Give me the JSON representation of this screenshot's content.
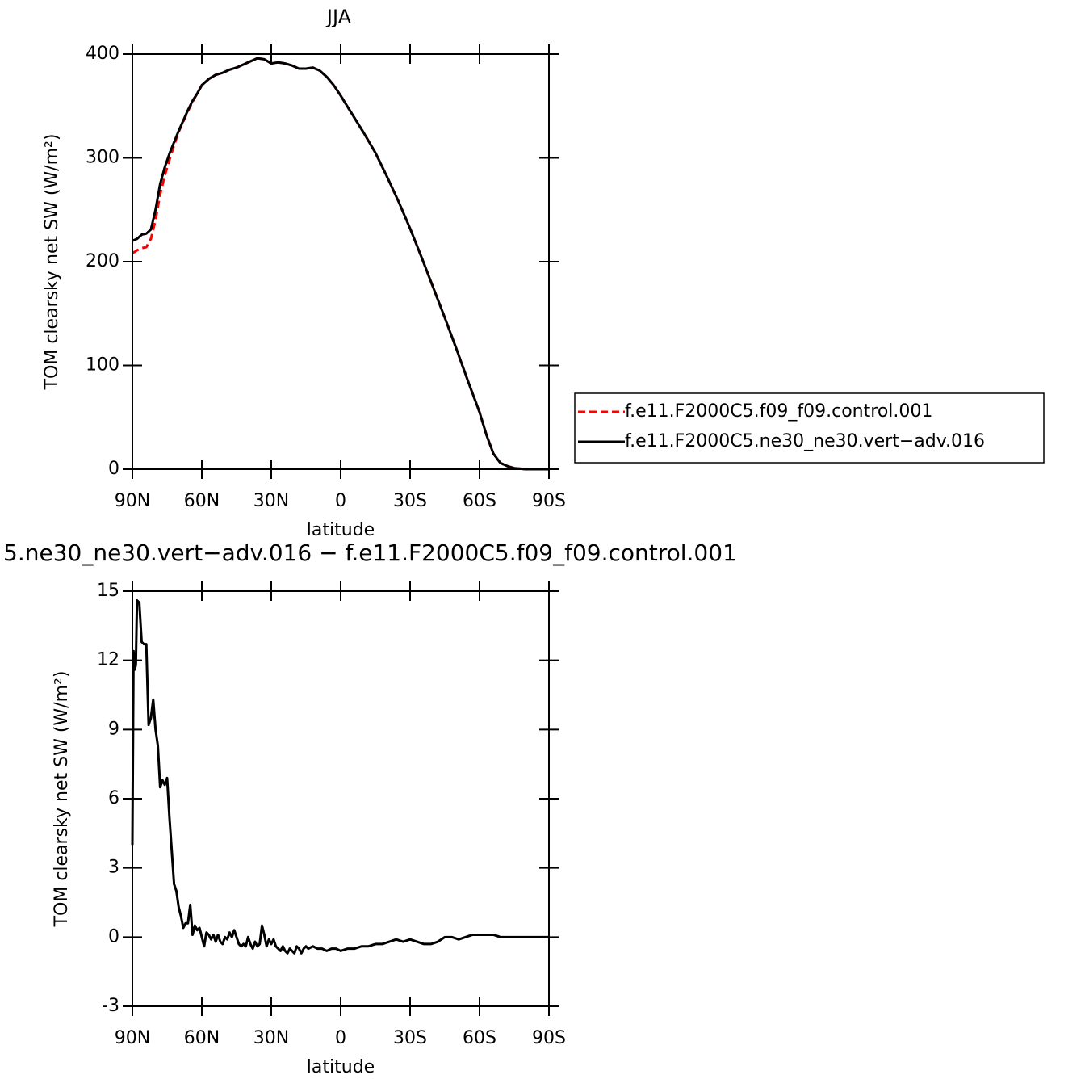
{
  "chart_data": [
    {
      "type": "line",
      "title": "JJA",
      "x_label": "latitude",
      "y_label": "TOM clearsky net SW (W/m²)",
      "xlim": [
        90,
        -90
      ],
      "xticks": [
        {
          "value": 90,
          "label": "90N"
        },
        {
          "value": 60,
          "label": "60N"
        },
        {
          "value": 30,
          "label": "30N"
        },
        0,
        {
          "value": -30,
          "label": "30S"
        },
        {
          "value": -60,
          "label": "60S"
        },
        {
          "value": -90,
          "label": "90S"
        }
      ],
      "ylim": [
        0,
        400
      ],
      "yticks": [
        0,
        100,
        200,
        300,
        400
      ],
      "legend": "right",
      "x": [
        90,
        88,
        86,
        84,
        82,
        80,
        78,
        76,
        74,
        72,
        70,
        68,
        66,
        64,
        62,
        60,
        57,
        54,
        51,
        48,
        45,
        42,
        39,
        36,
        33,
        30,
        27,
        24,
        21,
        18,
        15,
        12,
        9,
        6,
        3,
        0,
        -5,
        -10,
        -15,
        -20,
        -25,
        -30,
        -35,
        -40,
        -45,
        -50,
        -55,
        -60,
        -63,
        -66,
        -69,
        -72,
        -75,
        -80,
        -85,
        -90
      ],
      "series": [
        {
          "name": "f.e11.F2000C5.f09_f09.control.001",
          "color": "#ff0000",
          "style": "dashed",
          "values": [
            208,
            211,
            213,
            214,
            222,
            240,
            265,
            283,
            298,
            312,
            325,
            335,
            345,
            354,
            362,
            370,
            376,
            380,
            382,
            385,
            387,
            390,
            393,
            396,
            395,
            391,
            392,
            391,
            389,
            386,
            386,
            387,
            384,
            378,
            370,
            360,
            342,
            324,
            305,
            282,
            258,
            232,
            204,
            175,
            146,
            116,
            85,
            55,
            33,
            15,
            6,
            3,
            1,
            0,
            0,
            0
          ]
        },
        {
          "name": "f.e11.F2000C5.ne30_ne30.vert−adv.016",
          "color": "#000000",
          "style": "solid",
          "values": [
            220,
            222,
            226,
            227,
            231,
            250,
            275,
            291,
            304,
            315,
            326,
            336,
            346,
            355,
            362,
            370,
            376,
            380,
            382,
            385,
            387,
            390,
            393,
            396,
            395,
            391,
            392,
            391,
            389,
            386,
            386,
            387,
            384,
            378,
            370,
            360,
            342,
            324,
            305,
            282,
            258,
            232,
            204,
            175,
            146,
            116,
            85,
            55,
            33,
            15,
            6,
            3,
            1,
            0,
            0,
            0
          ]
        }
      ]
    },
    {
      "type": "line",
      "title": "5.ne30_ne30.vert−adv.016 − f.e11.F2000C5.f09_f09.control.001",
      "x_label": "latitude",
      "y_label": "TOM clearsky net SW (W/m²)",
      "xlim": [
        90,
        -90
      ],
      "xticks": [
        {
          "value": 90,
          "label": "90N"
        },
        {
          "value": 60,
          "label": "60N"
        },
        {
          "value": 30,
          "label": "30N"
        },
        0,
        {
          "value": -30,
          "label": "30S"
        },
        {
          "value": -60,
          "label": "60S"
        },
        {
          "value": -90,
          "label": "90S"
        }
      ],
      "ylim": [
        -3,
        15
      ],
      "yticks": [
        -3,
        0,
        3,
        6,
        9,
        12,
        15
      ],
      "x": [
        90,
        89.5,
        89,
        88.5,
        88,
        87,
        86,
        85,
        84,
        83,
        82,
        81,
        80,
        79,
        78,
        77,
        76,
        75,
        74,
        72,
        71,
        70,
        69,
        68,
        67,
        66,
        65,
        64,
        63,
        62,
        61,
        60,
        59,
        58,
        57,
        56,
        55,
        54,
        53,
        52,
        51,
        50,
        49,
        48,
        47,
        46,
        45,
        44,
        43,
        42,
        41,
        40,
        39,
        38,
        37,
        36,
        35,
        34,
        33,
        32,
        31,
        30,
        29,
        28,
        27,
        26,
        25,
        24,
        23,
        22,
        21,
        20,
        19,
        18,
        17,
        16,
        15,
        14,
        12,
        10,
        8,
        6,
        4,
        2,
        0,
        -3,
        -6,
        -9,
        -12,
        -15,
        -18,
        -21,
        -24,
        -27,
        -30,
        -33,
        -36,
        -39,
        -42,
        -45,
        -48,
        -51,
        -54,
        -57,
        -60,
        -63,
        -66,
        -69,
        -75,
        -80,
        -85,
        -90
      ],
      "series": [
        {
          "name": null,
          "color": "#000000",
          "style": "solid",
          "values": [
            4,
            12.4,
            11.6,
            11.8,
            14.6,
            14.5,
            12.8,
            12.7,
            12.7,
            9.2,
            9.5,
            10.3,
            9,
            8.3,
            6.5,
            6.8,
            6.6,
            6.9,
            5.2,
            2.3,
            2,
            1.3,
            0.9,
            0.4,
            0.6,
            0.6,
            1.4,
            0.1,
            0.5,
            0.3,
            0.4,
            0,
            -0.4,
            0.2,
            0.1,
            -0.1,
            0.1,
            -0.2,
            0.1,
            -0.2,
            -0.3,
            0,
            -0.1,
            0.2,
            0,
            0.3,
            0,
            -0.3,
            -0.4,
            -0.3,
            -0.4,
            0,
            -0.3,
            -0.5,
            -0.2,
            -0.4,
            -0.3,
            0.5,
            0.1,
            -0.4,
            -0.1,
            -0.3,
            -0.1,
            -0.4,
            -0.5,
            -0.6,
            -0.4,
            -0.6,
            -0.7,
            -0.5,
            -0.6,
            -0.7,
            -0.4,
            -0.5,
            -0.7,
            -0.5,
            -0.4,
            -0.5,
            -0.4,
            -0.5,
            -0.5,
            -0.6,
            -0.5,
            -0.5,
            -0.6,
            -0.5,
            -0.5,
            -0.4,
            -0.4,
            -0.3,
            -0.3,
            -0.2,
            -0.1,
            -0.2,
            -0.1,
            -0.2,
            -0.3,
            -0.3,
            -0.2,
            0,
            0,
            -0.1,
            0,
            0.1,
            0.1,
            0.1,
            0.1,
            0,
            0,
            0,
            0,
            0
          ]
        }
      ]
    }
  ]
}
